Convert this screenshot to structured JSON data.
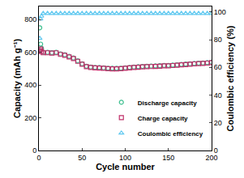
{
  "chart_data": {
    "type": "scatter",
    "x_label": "Cycle number",
    "y_label": "Capacity (mAh g⁻¹)",
    "y2_label": "Coulombic efficiency (%)",
    "xlim": [
      0,
      200
    ],
    "xticks": [
      0,
      50,
      100,
      150,
      200
    ],
    "ylim": [
      0,
      880
    ],
    "yticks": [
      0,
      200,
      400,
      600,
      800
    ],
    "y2lim": [
      0,
      104
    ],
    "y2ticks": [
      0,
      20,
      40,
      60,
      80,
      100
    ],
    "grid": false,
    "legend": "lower right",
    "series": [
      {
        "name": "Discharge capacity",
        "color": "#3dbf8f",
        "marker": "circle-open",
        "x": [
          1,
          2,
          3,
          5,
          10,
          15,
          20,
          25,
          30,
          35,
          40,
          45,
          50,
          55,
          60,
          65,
          70,
          75,
          80,
          85,
          90,
          95,
          100,
          105,
          110,
          115,
          120,
          125,
          130,
          135,
          140,
          145,
          150,
          155,
          160,
          165,
          170,
          175,
          180,
          185,
          190,
          195,
          200
        ],
        "values": [
          750,
          650,
          625,
          600,
          600,
          598,
          600,
          590,
          585,
          575,
          565,
          548,
          530,
          515,
          510,
          508,
          507,
          505,
          503,
          502,
          502,
          503,
          505,
          508,
          510,
          512,
          514,
          515,
          516,
          517,
          518,
          520,
          520,
          522,
          524,
          526,
          528,
          530,
          532,
          534,
          535,
          537,
          540
        ]
      },
      {
        "name": "Charge capacity",
        "color": "#c0306a",
        "marker": "square-open",
        "x": [
          1,
          2,
          3,
          5,
          10,
          15,
          20,
          25,
          30,
          35,
          40,
          45,
          50,
          55,
          60,
          65,
          70,
          75,
          80,
          85,
          90,
          95,
          100,
          105,
          110,
          115,
          120,
          125,
          130,
          135,
          140,
          145,
          150,
          155,
          160,
          165,
          170,
          175,
          180,
          185,
          190,
          195,
          200
        ],
        "values": [
          610,
          620,
          605,
          597,
          597,
          595,
          597,
          587,
          582,
          572,
          562,
          545,
          527,
          512,
          507,
          505,
          504,
          502,
          500,
          499,
          499,
          500,
          502,
          505,
          507,
          509,
          511,
          512,
          513,
          514,
          515,
          517,
          517,
          519,
          521,
          523,
          525,
          527,
          529,
          531,
          532,
          534,
          537
        ]
      },
      {
        "name": "Coulombic efficiency",
        "color": "#5ec8f0",
        "marker": "triangle-up-open",
        "axis": "y2",
        "x": [
          1,
          2,
          3,
          5,
          10,
          15,
          20,
          25,
          30,
          35,
          40,
          45,
          50,
          55,
          60,
          65,
          70,
          75,
          80,
          85,
          90,
          95,
          100,
          105,
          110,
          115,
          120,
          125,
          130,
          135,
          140,
          145,
          150,
          155,
          160,
          165,
          170,
          175,
          180,
          185,
          190,
          195,
          200
        ],
        "values": [
          81,
          95,
          97,
          99,
          99,
          99,
          99,
          99,
          99,
          99,
          99,
          99,
          99,
          99,
          99,
          99,
          99,
          99,
          99,
          99,
          99,
          99,
          99,
          99,
          99,
          99,
          99,
          99,
          99,
          99,
          99,
          99,
          99,
          99,
          99,
          99,
          99,
          99,
          99,
          99,
          99,
          99,
          99
        ]
      }
    ]
  }
}
